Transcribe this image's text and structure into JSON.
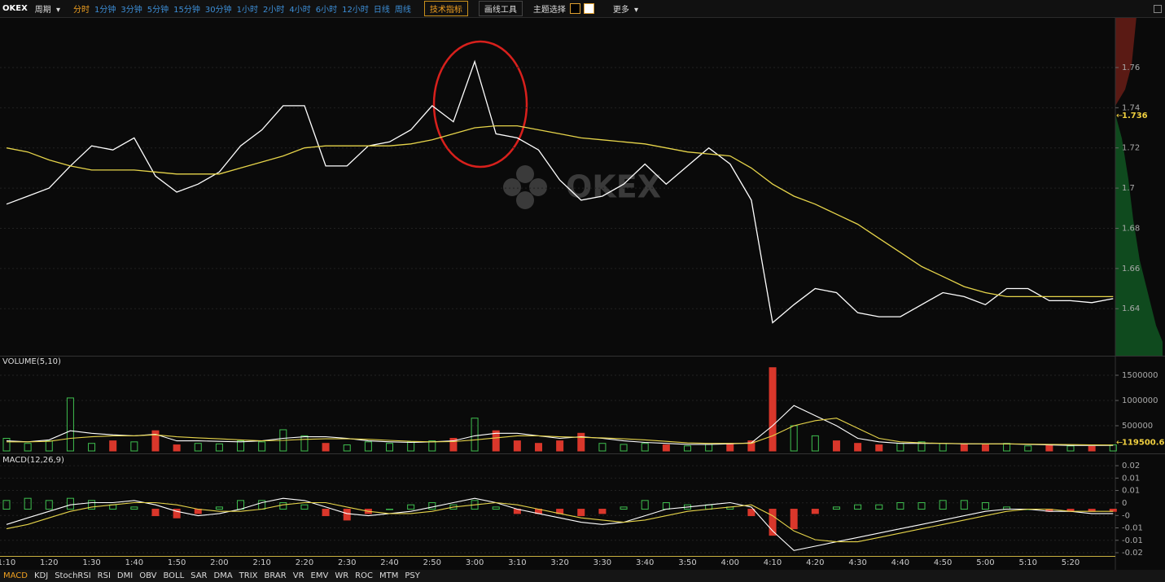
{
  "toolbar": {
    "brand": "OKEX",
    "period": "周期",
    "intervals": [
      "分时",
      "1分钟",
      "3分钟",
      "5分钟",
      "15分钟",
      "30分钟",
      "1小时",
      "2小时",
      "4小时",
      "6小时",
      "12小时",
      "日线",
      "周线"
    ],
    "tech": "技术指标",
    "draw": "画线工具",
    "theme": "主题选择",
    "more": "更多"
  },
  "tabs": [
    "MACD",
    "KDJ",
    "StochRSI",
    "RSI",
    "DMI",
    "OBV",
    "BOLL",
    "SAR",
    "DMA",
    "TRIX",
    "BRAR",
    "VR",
    "EMV",
    "WR",
    "ROC",
    "MTM",
    "PSY"
  ],
  "chart_data": [
    {
      "type": "line",
      "watermark": "OKEX",
      "categories": [
        "1:10",
        null,
        "1:20",
        null,
        "1:30",
        null,
        "1:40",
        null,
        "1:50",
        null,
        "2:00",
        null,
        "2:10",
        null,
        "2:20",
        null,
        "2:30",
        null,
        "2:40",
        null,
        "2:50",
        null,
        "3:00",
        null,
        "3:10",
        null,
        "3:20",
        null,
        "3:30",
        null,
        "3:40",
        null,
        "3:50",
        null,
        "4:00",
        null,
        "4:10",
        null,
        "4:20",
        null,
        "4:30",
        null,
        "4:40",
        null,
        "4:50",
        null,
        "5:00",
        null,
        "5:10",
        null,
        "5:20",
        null,
        null
      ],
      "series": [
        {
          "color": "#ffffff",
          "values": [
            1.692,
            1.696,
            1.7,
            1.711,
            1.721,
            1.719,
            1.725,
            1.706,
            1.698,
            1.702,
            1.708,
            1.721,
            1.729,
            1.741,
            1.741,
            1.711,
            1.711,
            1.721,
            1.723,
            1.729,
            1.741,
            1.733,
            1.763,
            1.727,
            1.725,
            1.719,
            1.704,
            1.694,
            1.696,
            1.702,
            1.712,
            1.702,
            1.711,
            1.72,
            1.712,
            1.694,
            1.633,
            1.642,
            1.65,
            1.648,
            1.638,
            1.636,
            1.636,
            1.642,
            1.648,
            1.646,
            1.642,
            1.65,
            1.65,
            1.644,
            1.644,
            1.643,
            1.645
          ]
        },
        {
          "color": "#e6d44a",
          "values": [
            1.72,
            1.718,
            1.714,
            1.711,
            1.709,
            1.709,
            1.709,
            1.708,
            1.707,
            1.707,
            1.707,
            1.71,
            1.713,
            1.716,
            1.72,
            1.721,
            1.721,
            1.721,
            1.721,
            1.722,
            1.724,
            1.727,
            1.73,
            1.731,
            1.731,
            1.729,
            1.727,
            1.725,
            1.724,
            1.723,
            1.722,
            1.72,
            1.718,
            1.717,
            1.716,
            1.71,
            1.702,
            1.696,
            1.692,
            1.687,
            1.682,
            1.675,
            1.668,
            1.661,
            1.656,
            1.651,
            1.648,
            1.646,
            1.646,
            1.646,
            1.646,
            1.646,
            1.646
          ]
        }
      ],
      "last_price": 1.736,
      "last_color": "#f0d040",
      "ylim": [
        1.6166,
        1.7855
      ],
      "yticks": [
        1.64,
        1.66,
        1.68,
        1.7,
        1.72,
        1.74,
        1.76
      ],
      "grid": true
    },
    {
      "type": "bar",
      "title": "VOLUME(5,10)",
      "up_color": "#3fbf4f",
      "down_color": "#d9372b",
      "series": [
        {
          "type": "bar",
          "values": [
            250000,
            150000,
            200000,
            1050000,
            150000,
            200000,
            180000,
            400000,
            120000,
            150000,
            140000,
            200000,
            180000,
            420000,
            300000,
            150000,
            120000,
            180000,
            150000,
            180000,
            200000,
            250000,
            650000,
            400000,
            200000,
            150000,
            200000,
            350000,
            150000,
            130000,
            150000,
            120000,
            100000,
            130000,
            150000,
            200000,
            1650000,
            500000,
            300000,
            200000,
            150000,
            120000,
            150000,
            180000,
            150000,
            130000,
            120000,
            150000,
            100000,
            120000,
            100000,
            90000,
            119500.63
          ]
        },
        {
          "type": "line",
          "color": "#ffffff",
          "values": [
            200000,
            180000,
            220000,
            400000,
            350000,
            320000,
            300000,
            330000,
            200000,
            200000,
            190000,
            180000,
            200000,
            250000,
            280000,
            280000,
            250000,
            200000,
            180000,
            170000,
            180000,
            200000,
            300000,
            350000,
            350000,
            300000,
            250000,
            280000,
            250000,
            200000,
            170000,
            150000,
            130000,
            130000,
            140000,
            160000,
            500000,
            900000,
            700000,
            500000,
            250000,
            180000,
            150000,
            150000,
            150000,
            140000,
            140000,
            140000,
            130000,
            120000,
            110000,
            110000,
            110000
          ]
        },
        {
          "type": "line",
          "color": "#e6d44a",
          "values": [
            180000,
            180000,
            190000,
            250000,
            280000,
            300000,
            300000,
            320000,
            280000,
            260000,
            240000,
            220000,
            200000,
            210000,
            230000,
            240000,
            240000,
            230000,
            210000,
            190000,
            180000,
            185000,
            220000,
            260000,
            300000,
            300000,
            280000,
            270000,
            260000,
            240000,
            220000,
            190000,
            160000,
            150000,
            150000,
            150000,
            300000,
            500000,
            600000,
            650000,
            450000,
            250000,
            180000,
            160000,
            150000,
            145000,
            140000,
            140000,
            135000,
            130000,
            125000,
            120000,
            118000
          ]
        }
      ],
      "ylim": [
        -48400,
        1822600
      ],
      "yticks": [
        500000,
        1000000,
        1500000
      ],
      "grid": true
    },
    {
      "type": "bar",
      "title": "MACD(12,26,9)",
      "up_color": "#3fbf4f",
      "down_color": "#d9372b",
      "series": [
        {
          "type": "bar",
          "values": [
            0.004,
            0.005,
            0.004,
            0.005,
            0.004,
            0.002,
            0.001,
            -0.003,
            -0.004,
            -0.002,
            0.001,
            0.004,
            0.004,
            0.003,
            0.002,
            -0.003,
            -0.005,
            -0.002,
            0,
            0.002,
            0.003,
            0.002,
            0.004,
            0.001,
            -0.002,
            -0.002,
            -0.002,
            -0.003,
            -0.002,
            0.001,
            0.004,
            0.003,
            0.002,
            0.002,
            0.001,
            -0.003,
            -0.012,
            -0.009,
            -0.002,
            0.001,
            0.002,
            0.002,
            0.003,
            0.003,
            0.004,
            0.004,
            0.003,
            0.001,
            0,
            -0.001,
            -0.001,
            -0.001,
            -0.001
          ]
        },
        {
          "type": "line",
          "color": "#ffffff",
          "values": [
            -0.007,
            -0.004,
            -0.001,
            0.002,
            0.003,
            0.003,
            0.004,
            0.002,
            -0.001,
            -0.003,
            -0.002,
            0,
            0.003,
            0.005,
            0.004,
            0.001,
            -0.002,
            -0.003,
            -0.002,
            -0.001,
            0.001,
            0.003,
            0.005,
            0.003,
            0,
            -0.002,
            -0.004,
            -0.006,
            -0.007,
            -0.006,
            -0.003,
            0,
            0.001,
            0.002,
            0.003,
            0.001,
            -0.01,
            -0.019,
            -0.017,
            -0.015,
            -0.013,
            -0.011,
            -0.009,
            -0.007,
            -0.005,
            -0.003,
            -0.001,
            0,
            0,
            -0.001,
            -0.001,
            -0.002,
            -0.002
          ]
        },
        {
          "type": "line",
          "color": "#e6d44a",
          "values": [
            -0.009,
            -0.007,
            -0.004,
            -0.001,
            0.001,
            0.002,
            0.003,
            0.003,
            0.002,
            0,
            -0.001,
            -0.001,
            0,
            0.002,
            0.003,
            0.003,
            0.001,
            -0.001,
            -0.002,
            -0.002,
            -0.001,
            0.001,
            0.002,
            0.003,
            0.002,
            0,
            -0.002,
            -0.004,
            -0.005,
            -0.006,
            -0.005,
            -0.003,
            -0.001,
            0,
            0.001,
            0.002,
            -0.003,
            -0.01,
            -0.014,
            -0.015,
            -0.015,
            -0.013,
            -0.011,
            -0.009,
            -0.007,
            -0.005,
            -0.003,
            -0.001,
            0,
            0,
            -0.001,
            -0.001,
            -0.001
          ]
        }
      ],
      "ylim": [
        -0.0215,
        0.0249
      ],
      "yticks": [
        {
          "value": 0.02,
          "label": "0.02"
        },
        {
          "value": 0.0143,
          "label": "0.01"
        },
        {
          "value": 0.0086,
          "label": "0.01"
        },
        {
          "value": 0.0029,
          "label": "0"
        },
        {
          "value": -0.0029,
          "label": "-0"
        },
        {
          "value": -0.0086,
          "label": "-0.01"
        },
        {
          "value": -0.0143,
          "label": "-0.01"
        },
        {
          "value": -0.02,
          "label": "-0.02"
        }
      ],
      "grid": true
    }
  ]
}
